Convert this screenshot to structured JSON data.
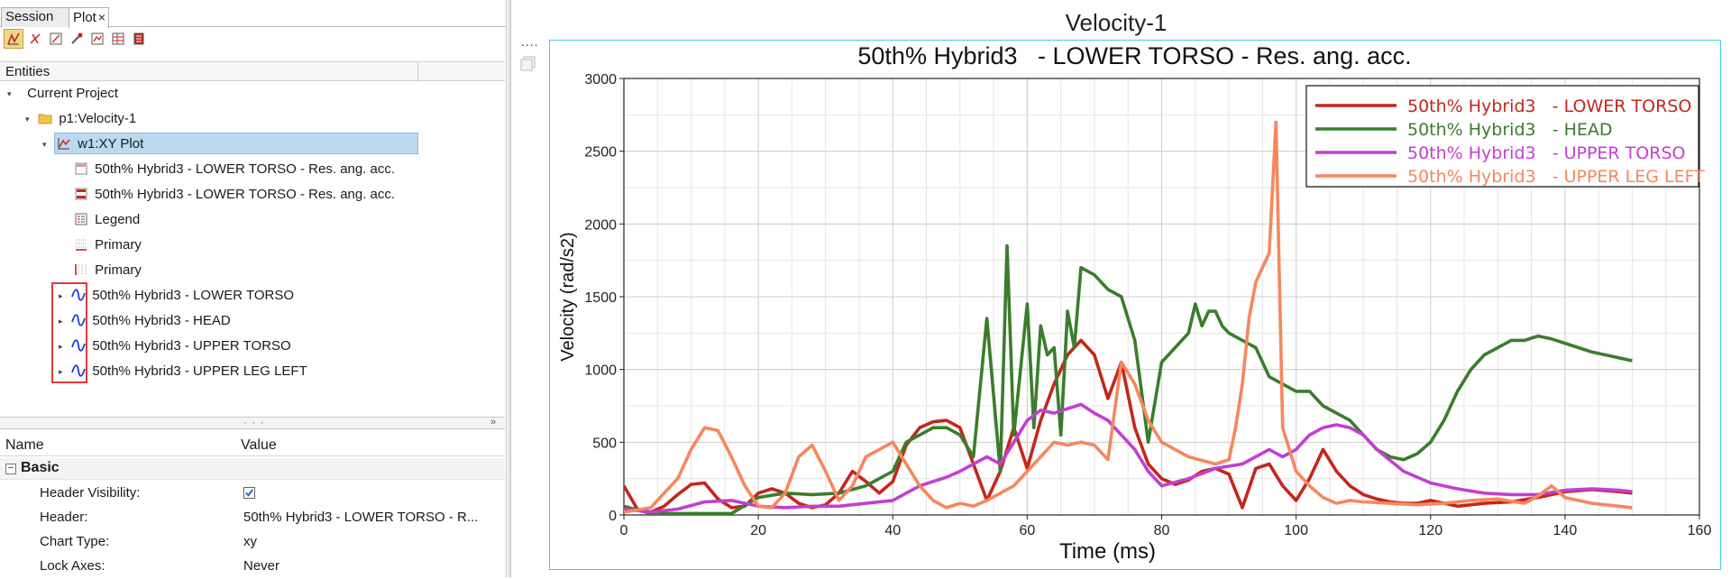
{
  "tabs": [
    {
      "label": "Session"
    },
    {
      "label": "Plot",
      "close": "×"
    }
  ],
  "toolbar": {
    "icons": [
      "plot-mode-icon",
      "curve-tool-icon",
      "datum-icon",
      "measure-icon",
      "axis-icon",
      "table-icon",
      "page-icon"
    ]
  },
  "entities_header": "Entities",
  "tree": {
    "current_project": "Current Project",
    "page": "p1:Velocity-1",
    "window": "w1:XY Plot",
    "header_item": "50th% Hybrid3   - LOWER TORSO - Res. ang. acc.",
    "footer_item": "50th% Hybrid3   - LOWER TORSO - Res. ang. acc.",
    "legend": "Legend",
    "axis_x": "Primary",
    "axis_y": "Primary",
    "curves": [
      "50th% Hybrid3   - LOWER TORSO",
      "50th% Hybrid3   - HEAD",
      "50th% Hybrid3   - UPPER TORSO",
      "50th% Hybrid3   - UPPER LEG LEFT"
    ]
  },
  "splitter": {
    "dots": "· · ·",
    "chevron": "»"
  },
  "properties": {
    "name_col": "Name",
    "value_col": "Value",
    "group": "Basic",
    "group_toggle": "−",
    "rows": [
      {
        "name": "Header Visibility:",
        "value": ""
      },
      {
        "name": "Header:",
        "value": "50th% Hybrid3   - LOWER TORSO - R..."
      },
      {
        "name": "Chart Type:",
        "value": "xy"
      },
      {
        "name": "Lock Axes:",
        "value": "Never"
      }
    ]
  },
  "plot": {
    "window_title": "Velocity-1",
    "side_dots": "....",
    "colors": {
      "frame": "#43d1df",
      "lower_torso": "#c4261b",
      "head": "#3a7d2c",
      "upper_torso": "#c23fd1",
      "upper_leg_left": "#f6875d"
    }
  },
  "chart_data": {
    "type": "line",
    "title": "50th% Hybrid3   - LOWER TORSO - Res. ang. acc.",
    "xlabel": "Time (ms)",
    "ylabel": "Velocity (rad/s2)",
    "xlim": [
      0,
      160
    ],
    "ylim": [
      0,
      3000
    ],
    "xticks": [
      0,
      20,
      40,
      60,
      80,
      100,
      120,
      140,
      160
    ],
    "yticks": [
      0,
      500,
      1000,
      1500,
      2000,
      2500,
      3000
    ],
    "grid": true,
    "legend_position": "top-right",
    "series": [
      {
        "name": "50th% Hybrid3   - LOWER TORSO",
        "color": "#c4261b",
        "x": [
          0,
          2,
          4,
          6,
          8,
          10,
          12,
          14,
          16,
          18,
          20,
          22,
          24,
          26,
          28,
          30,
          32,
          34,
          36,
          38,
          40,
          42,
          44,
          46,
          48,
          50,
          52,
          54,
          56,
          58,
          60,
          62,
          64,
          66,
          68,
          70,
          72,
          74,
          76,
          78,
          80,
          82,
          84,
          86,
          88,
          90,
          92,
          94,
          96,
          98,
          100,
          102,
          104,
          106,
          108,
          110,
          112,
          114,
          116,
          118,
          120,
          124,
          128,
          132,
          136,
          140,
          144,
          148,
          150
        ],
        "y": [
          200,
          40,
          20,
          60,
          140,
          210,
          220,
          110,
          50,
          60,
          150,
          180,
          150,
          80,
          50,
          70,
          150,
          300,
          230,
          150,
          230,
          480,
          600,
          640,
          650,
          600,
          350,
          100,
          300,
          600,
          320,
          650,
          900,
          1100,
          1200,
          1100,
          800,
          1050,
          600,
          350,
          250,
          210,
          240,
          300,
          320,
          280,
          50,
          320,
          350,
          200,
          100,
          250,
          450,
          300,
          200,
          140,
          110,
          90,
          80,
          80,
          100,
          60,
          80,
          90,
          120,
          160,
          175,
          160,
          150
        ]
      },
      {
        "name": "50th% Hybrid3   - HEAD",
        "color": "#3a7d2c",
        "x": [
          0,
          4,
          8,
          12,
          16,
          20,
          24,
          28,
          32,
          36,
          40,
          42,
          44,
          46,
          48,
          50,
          52,
          54,
          56,
          57,
          58,
          60,
          61,
          62,
          63,
          64,
          65,
          66,
          67,
          68,
          70,
          72,
          74,
          76,
          78,
          80,
          82,
          84,
          85,
          86,
          87,
          88,
          89,
          90,
          92,
          94,
          96,
          98,
          100,
          102,
          104,
          106,
          108,
          110,
          112,
          114,
          116,
          118,
          120,
          122,
          124,
          126,
          128,
          130,
          132,
          134,
          136,
          138,
          140,
          142,
          144,
          146,
          148,
          150
        ],
        "y": [
          60,
          10,
          10,
          10,
          10,
          120,
          150,
          140,
          150,
          200,
          300,
          500,
          550,
          600,
          600,
          550,
          400,
          1350,
          300,
          1850,
          550,
          1450,
          600,
          1300,
          1100,
          1150,
          550,
          1400,
          1150,
          1700,
          1650,
          1550,
          1500,
          1200,
          500,
          1050,
          1150,
          1250,
          1450,
          1300,
          1400,
          1400,
          1300,
          1250,
          1200,
          1150,
          950,
          900,
          850,
          850,
          750,
          700,
          650,
          550,
          450,
          400,
          380,
          420,
          500,
          650,
          850,
          1000,
          1100,
          1150,
          1200,
          1200,
          1230,
          1210,
          1180,
          1150,
          1120,
          1100,
          1080,
          1060
        ]
      },
      {
        "name": "50th% Hybrid3   - UPPER TORSO",
        "color": "#c23fd1",
        "x": [
          0,
          4,
          8,
          12,
          16,
          20,
          24,
          28,
          32,
          36,
          40,
          44,
          48,
          50,
          52,
          54,
          56,
          58,
          60,
          62,
          64,
          66,
          68,
          70,
          72,
          74,
          76,
          78,
          80,
          84,
          88,
          92,
          96,
          98,
          100,
          102,
          104,
          106,
          108,
          110,
          112,
          116,
          120,
          124,
          128,
          132,
          136,
          140,
          144,
          148,
          150
        ],
        "y": [
          40,
          20,
          40,
          90,
          100,
          60,
          50,
          60,
          60,
          80,
          100,
          200,
          260,
          300,
          350,
          400,
          350,
          500,
          650,
          720,
          700,
          730,
          760,
          700,
          650,
          550,
          450,
          300,
          200,
          250,
          320,
          350,
          450,
          400,
          450,
          550,
          600,
          620,
          600,
          550,
          450,
          300,
          220,
          180,
          150,
          140,
          140,
          170,
          180,
          170,
          160
        ]
      },
      {
        "name": "50th% Hybrid3   - UPPER LEG LEFT",
        "color": "#f6875d",
        "x": [
          0,
          4,
          8,
          10,
          12,
          14,
          16,
          18,
          20,
          22,
          24,
          26,
          28,
          30,
          32,
          34,
          36,
          38,
          40,
          42,
          44,
          46,
          48,
          50,
          52,
          54,
          56,
          58,
          60,
          62,
          64,
          66,
          68,
          70,
          72,
          74,
          76,
          78,
          80,
          84,
          88,
          90,
          91,
          92,
          93,
          94,
          95,
          96,
          97,
          98,
          99,
          100,
          102,
          104,
          106,
          108,
          110,
          114,
          118,
          122,
          126,
          130,
          134,
          136,
          138,
          140,
          144,
          148,
          150
        ],
        "y": [
          20,
          50,
          250,
          450,
          600,
          580,
          400,
          200,
          60,
          50,
          150,
          400,
          480,
          300,
          100,
          200,
          400,
          450,
          500,
          350,
          200,
          100,
          50,
          80,
          60,
          100,
          150,
          200,
          300,
          400,
          500,
          480,
          500,
          480,
          380,
          1050,
          900,
          650,
          500,
          400,
          350,
          380,
          600,
          900,
          1350,
          1600,
          1700,
          1800,
          2700,
          600,
          450,
          300,
          200,
          120,
          80,
          100,
          90,
          80,
          70,
          80,
          100,
          110,
          80,
          130,
          200,
          120,
          80,
          60,
          50
        ]
      }
    ]
  }
}
